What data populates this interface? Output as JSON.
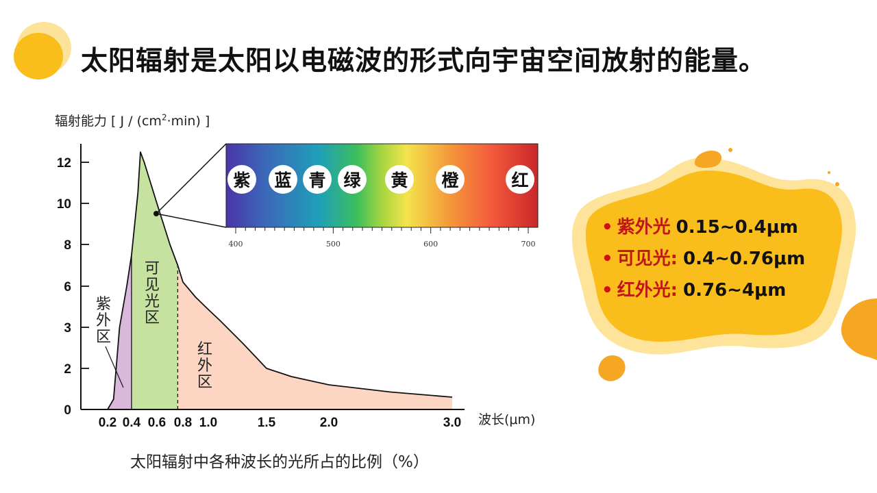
{
  "slide": {
    "title": "太阳辐射是太阳以电磁波的形式向宇宙空间放射的能量。",
    "caption": "太阳辐射中各种波长的光所占的比例（%）"
  },
  "chart_data": {
    "type": "area",
    "ylabel": "辐射能力 [ J / (cm²·min) ]",
    "xlabel": "波长(μm)",
    "x_ticks": [
      "0.2",
      "0.4",
      "0.6",
      "0.8",
      "1.0",
      "1.5",
      "2.0",
      "3.0"
    ],
    "y_ticks": [
      "0",
      "2",
      "3",
      "6",
      "8",
      "10",
      "12"
    ],
    "x": [
      0.2,
      0.25,
      0.3,
      0.36,
      0.4,
      0.45,
      0.47,
      0.5,
      0.55,
      0.6,
      0.65,
      0.7,
      0.76,
      0.8,
      0.9,
      1.0,
      1.1,
      1.3,
      1.5,
      1.7,
      2.0,
      2.5,
      3.0
    ],
    "y": [
      0.0,
      0.5,
      3.0,
      6.0,
      7.5,
      10.5,
      12.5,
      12.0,
      11.0,
      10.0,
      9.0,
      8.0,
      7.0,
      6.2,
      5.2,
      4.3,
      3.5,
      2.6,
      2.0,
      1.6,
      1.2,
      0.85,
      0.6
    ],
    "regions": [
      {
        "label": "紫外区",
        "from": 0.15,
        "to": 0.4,
        "color": "#d9b8dc"
      },
      {
        "label": "可见光区",
        "from": 0.4,
        "to": 0.76,
        "color": "#c5e2a0"
      },
      {
        "label": "红外区",
        "from": 0.76,
        "to": 3.0,
        "color": "#fdd5c3"
      }
    ],
    "spectrum": {
      "scale_ticks": [
        "400",
        "500",
        "600",
        "700"
      ],
      "colors": [
        "紫",
        "蓝",
        "青",
        "绿",
        "黄",
        "橙",
        "红"
      ]
    }
  },
  "bands": [
    {
      "name": "紫外光",
      "range": "0.15~0.4μm"
    },
    {
      "name": "可见光:",
      "range": "0.4~0.76μm"
    },
    {
      "name": "红外光:",
      "range": "0.76~4μm"
    }
  ],
  "colors": {
    "accent": "#f9be1b",
    "accent_light": "#fde49a",
    "bullet": "#d01010"
  }
}
